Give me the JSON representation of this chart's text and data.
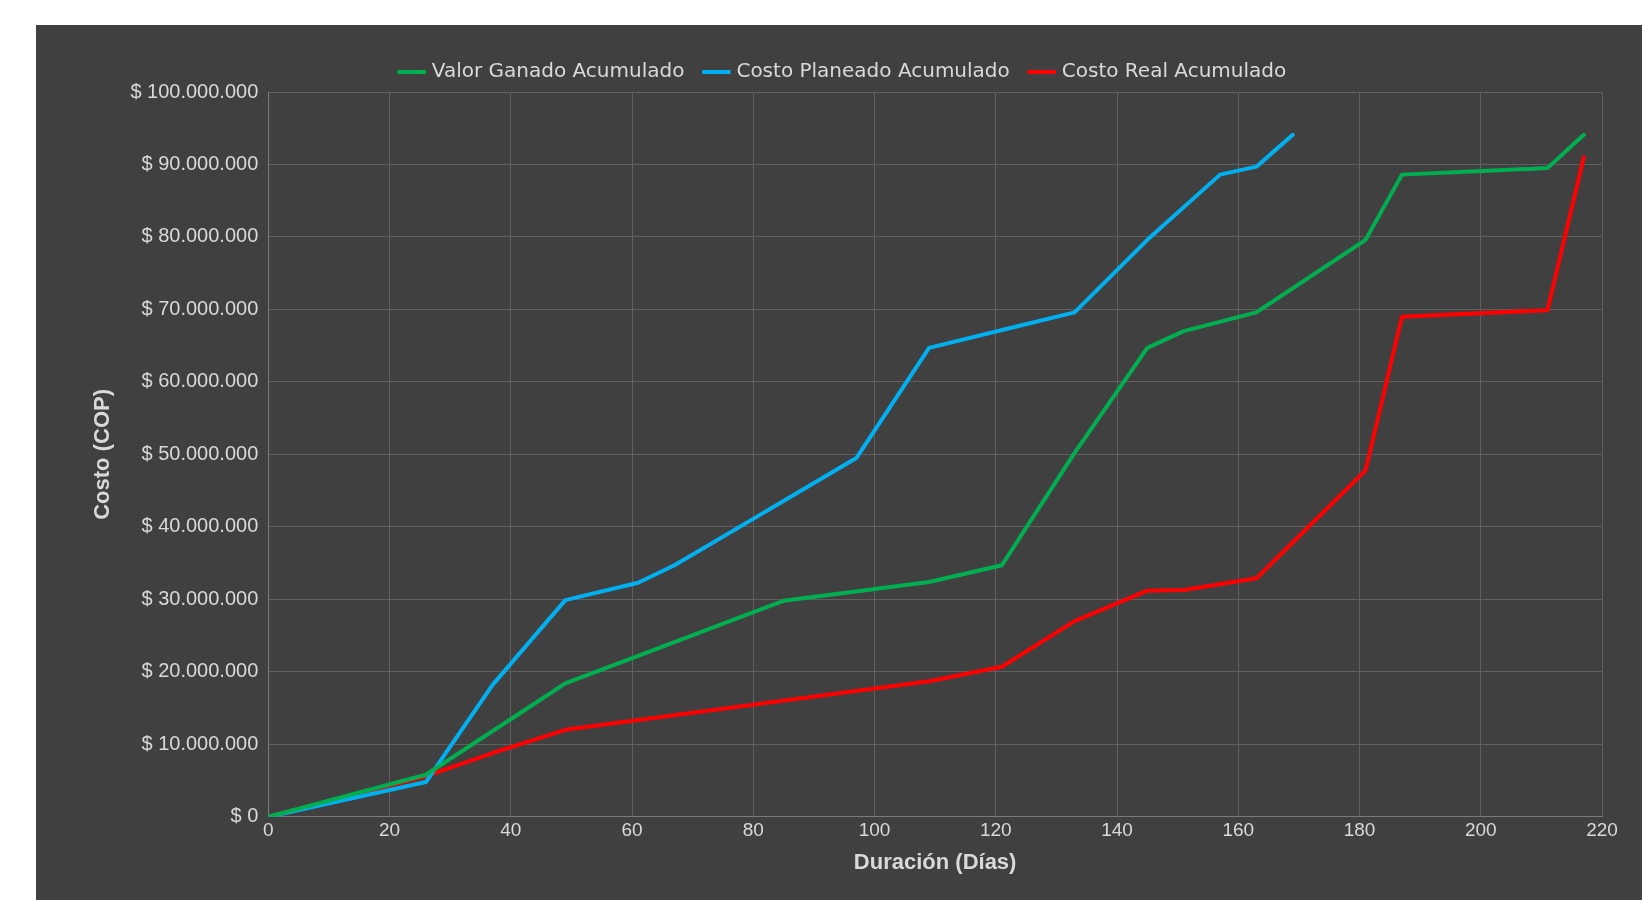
{
  "chart_data": {
    "type": "line",
    "xlabel": "Duración (Días)",
    "ylabel": "Costo (COP)",
    "xlim": [
      0,
      220
    ],
    "xticks": [
      0,
      20,
      40,
      60,
      80,
      100,
      120,
      140,
      160,
      180,
      200,
      220
    ],
    "ylim": [
      0,
      100000000
    ],
    "yticks": [
      {
        "value": 0,
        "label": "$ 0"
      },
      {
        "value": 10000000,
        "label": "$ 10.000.000"
      },
      {
        "value": 20000000,
        "label": "$ 20.000.000"
      },
      {
        "value": 30000000,
        "label": "$ 30.000.000"
      },
      {
        "value": 40000000,
        "label": "$ 40.000.000"
      },
      {
        "value": 50000000,
        "label": "$ 50.000.000"
      },
      {
        "value": 60000000,
        "label": "$ 60.000.000"
      },
      {
        "value": 70000000,
        "label": "$ 70.000.000"
      },
      {
        "value": 80000000,
        "label": "$ 80.000.000"
      },
      {
        "value": 90000000,
        "label": "$ 90.000.000"
      },
      {
        "value": 100000000,
        "label": "$ 100.000.000"
      }
    ],
    "grid": true,
    "legend": "top",
    "marker": "none",
    "line_style": "solid",
    "series": [
      {
        "name": "Valor Ganado Acumulado",
        "color": "#00b050",
        "x": [
          0,
          26,
          49,
          61,
          67,
          85,
          109,
          121,
          133,
          145,
          151,
          163,
          181,
          187,
          211,
          217
        ],
        "values": [
          0,
          5800000,
          18400000,
          22200000,
          24100000,
          29800000,
          32400000,
          34700000,
          50200000,
          64700000,
          67000000,
          69600000,
          79600000,
          88600000,
          89500000,
          94100000
        ]
      },
      {
        "name": "Costo Planeado Acumulado",
        "color": "#00b0f0",
        "x": [
          0,
          26,
          37,
          49,
          61,
          67,
          97,
          109,
          133,
          145,
          157,
          163,
          169
        ],
        "values": [
          0,
          4800000,
          18200000,
          29900000,
          32300000,
          34700000,
          49500000,
          64700000,
          69600000,
          79600000,
          88600000,
          89700000,
          94100000
        ]
      },
      {
        "name": "Costo Real Acumulado",
        "color": "#ff0000",
        "x": [
          0,
          26,
          37,
          49,
          109,
          121,
          133,
          145,
          151,
          163,
          181,
          187,
          211,
          217
        ],
        "values": [
          0,
          5600000,
          8800000,
          12000000,
          18700000,
          20700000,
          27000000,
          31200000,
          31300000,
          32900000,
          47800000,
          69000000,
          69900000,
          91000000
        ]
      }
    ]
  }
}
